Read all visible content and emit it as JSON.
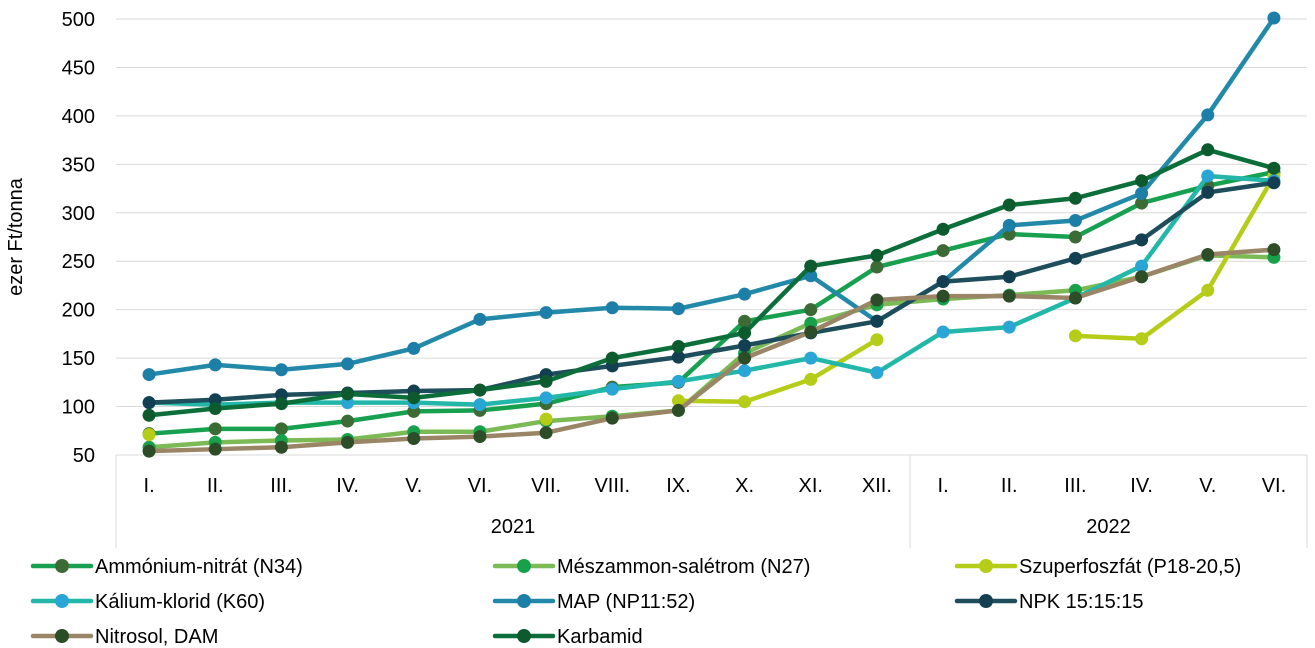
{
  "chart_data": {
    "type": "line",
    "ylabel": "ezer Ft/tonna",
    "ylim": [
      50,
      500
    ],
    "yticks": [
      50,
      100,
      150,
      200,
      250,
      300,
      350,
      400,
      450,
      500
    ],
    "grid": true,
    "legend_position": "bottom",
    "categories": [
      "I.",
      "II.",
      "III.",
      "IV.",
      "V.",
      "VI.",
      "VII.",
      "VIII.",
      "IX.",
      "X.",
      "XI.",
      "XII.",
      "I.",
      "II.",
      "III.",
      "IV.",
      "V.",
      "VI."
    ],
    "year_groups": [
      {
        "label": "2021",
        "count": 12
      },
      {
        "label": "2022",
        "count": 6
      }
    ],
    "series": [
      {
        "name": "Ammónium-nitrát (N34)",
        "line_color": "#17a050",
        "marker_color": "#3d6b35",
        "values": [
          72,
          77,
          77,
          85,
          95,
          96,
          103,
          120,
          125,
          188,
          200,
          244,
          261,
          278,
          275,
          310,
          328,
          342
        ]
      },
      {
        "name": "Mészammon-salétrom (N27)",
        "line_color": "#7cba55",
        "marker_color": "#18a04a",
        "values": [
          58,
          63,
          65,
          66,
          74,
          74,
          85,
          90,
          96,
          155,
          186,
          205,
          211,
          215,
          220,
          234,
          256,
          254
        ]
      },
      {
        "name": "Szuperfoszfát (P18-20,5)",
        "line_color": "#b5cc18",
        "marker_color": "#b5cc18",
        "values": [
          71,
          null,
          null,
          null,
          null,
          null,
          87,
          null,
          106,
          105,
          128,
          169,
          null,
          null,
          173,
          170,
          220,
          338
        ]
      },
      {
        "name": "Kálium-klorid (K60)",
        "line_color": "#22b7a8",
        "marker_color": "#2aa6d6",
        "values": [
          104,
          102,
          104,
          104,
          104,
          102,
          109,
          118,
          126,
          137,
          150,
          135,
          177,
          182,
          212,
          245,
          338,
          333
        ]
      },
      {
        "name": "MAP (NP11:52)",
        "line_color": "#2289a8",
        "marker_color": "#1d7ea7",
        "values": [
          133,
          143,
          138,
          144,
          160,
          190,
          197,
          202,
          201,
          216,
          235,
          188,
          229,
          287,
          292,
          320,
          401,
          501
        ]
      },
      {
        "name": "NPK 15:15:15",
        "line_color": "#1e4d5c",
        "marker_color": "#133f52",
        "values": [
          104,
          107,
          112,
          114,
          116,
          117,
          133,
          142,
          151,
          163,
          176,
          188,
          229,
          234,
          253,
          272,
          321,
          331
        ]
      },
      {
        "name": "Nitrosol, DAM",
        "line_color": "#9a8566",
        "marker_color": "#2d4c28",
        "values": [
          54,
          56,
          58,
          63,
          67,
          69,
          73,
          88,
          96,
          150,
          177,
          210,
          214,
          214,
          212,
          234,
          257,
          262
        ]
      },
      {
        "name": "Karbamid",
        "line_color": "#0c6e3a",
        "marker_color": "#0d5a2e",
        "values": [
          91,
          98,
          103,
          113,
          109,
          117,
          126,
          150,
          162,
          176,
          245,
          256,
          283,
          308,
          315,
          333,
          365,
          346
        ]
      }
    ]
  }
}
